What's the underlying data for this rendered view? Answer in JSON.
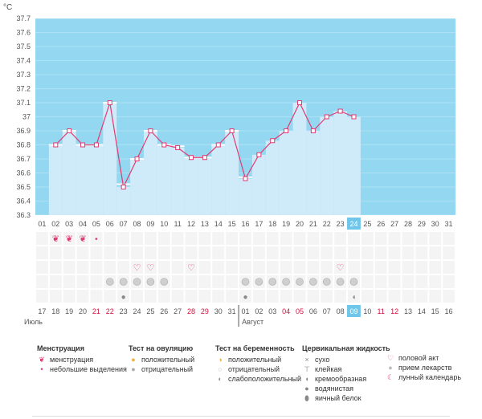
{
  "chart_data": {
    "type": "bar",
    "ylabel": "°C",
    "ylim": [
      36.3,
      37.7
    ],
    "y_ticks": [
      "36.3",
      "36.4",
      "36.5",
      "36.6",
      "36.7",
      "36.8",
      "36.9",
      "37",
      "37.1",
      "37.2",
      "37.3",
      "37.4",
      "37.5",
      "37.6",
      "37.7"
    ],
    "cycle_days": [
      "01",
      "02",
      "03",
      "04",
      "05",
      "06",
      "07",
      "08",
      "09",
      "10",
      "11",
      "12",
      "13",
      "14",
      "15",
      "16",
      "17",
      "18",
      "19",
      "20",
      "21",
      "22",
      "23",
      "24",
      "25",
      "26",
      "27",
      "28",
      "29",
      "30",
      "31"
    ],
    "values": [
      null,
      36.8,
      36.9,
      36.8,
      36.8,
      37.1,
      36.5,
      36.7,
      36.9,
      36.8,
      36.78,
      36.71,
      36.71,
      36.8,
      36.9,
      36.56,
      36.73,
      36.83,
      36.9,
      37.1,
      36.9,
      37.0,
      37.04,
      37.0,
      null,
      null,
      null,
      null,
      null,
      null,
      null
    ],
    "highlight_day": "24",
    "cover_lines": [
      36.8,
      36.9,
      36.8,
      36.8,
      37.1,
      36.52,
      36.7,
      36.9,
      36.8,
      36.79,
      36.71,
      36.71,
      36.8,
      36.9,
      36.57
    ],
    "calendar_dates": [
      "17",
      "18",
      "19",
      "20",
      "21",
      "22",
      "23",
      "24",
      "25",
      "26",
      "27",
      "28",
      "29",
      "30",
      "31",
      "01",
      "02",
      "03",
      "04",
      "05",
      "06",
      "07",
      "08",
      "09",
      "10",
      "11",
      "12",
      "13",
      "14",
      "15",
      "16"
    ],
    "weekend_dates_idx": [
      4,
      5,
      11,
      12,
      18,
      19,
      25,
      26
    ],
    "month_labels": [
      {
        "label": "Июль",
        "at": 0
      },
      {
        "label": "Август",
        "at": 15
      }
    ],
    "menstruation_days": [
      2,
      3,
      4
    ],
    "spotting_days": [
      5
    ],
    "love_days": [
      8,
      9,
      12,
      23
    ],
    "ovulation_negative_days": [
      6,
      7,
      8,
      9,
      10,
      16,
      17,
      18,
      19,
      20,
      21,
      22,
      23,
      24
    ],
    "cervical_drop_days": [
      7,
      16
    ],
    "cervical_creamy_days": [
      24
    ],
    "colors": {
      "bg_sky": "#93d7f1",
      "bar": "#cfeaf8",
      "line": "#e03a72",
      "highlight": "#70c6ea",
      "weekend": "#d0103d"
    }
  },
  "legend": {
    "menstruation": {
      "title": "Менструация",
      "items": [
        "менструация",
        "небольшие выделения"
      ]
    },
    "ovulation": {
      "title": "Тест на овуляцию",
      "items": [
        "положительный",
        "отрицательный"
      ]
    },
    "pregnancy": {
      "title": "Тест на беременность",
      "items": [
        "положительный",
        "отрицательный",
        "слабоположительный"
      ]
    },
    "cervical": {
      "title": "Цервикальная жидкость",
      "items": [
        "сухо",
        "клейкая",
        "кремообразная",
        "водянистая",
        "яичный белок"
      ]
    },
    "other": {
      "items": [
        "половой акт",
        "прием лекарств",
        "лунный календарь"
      ]
    }
  }
}
